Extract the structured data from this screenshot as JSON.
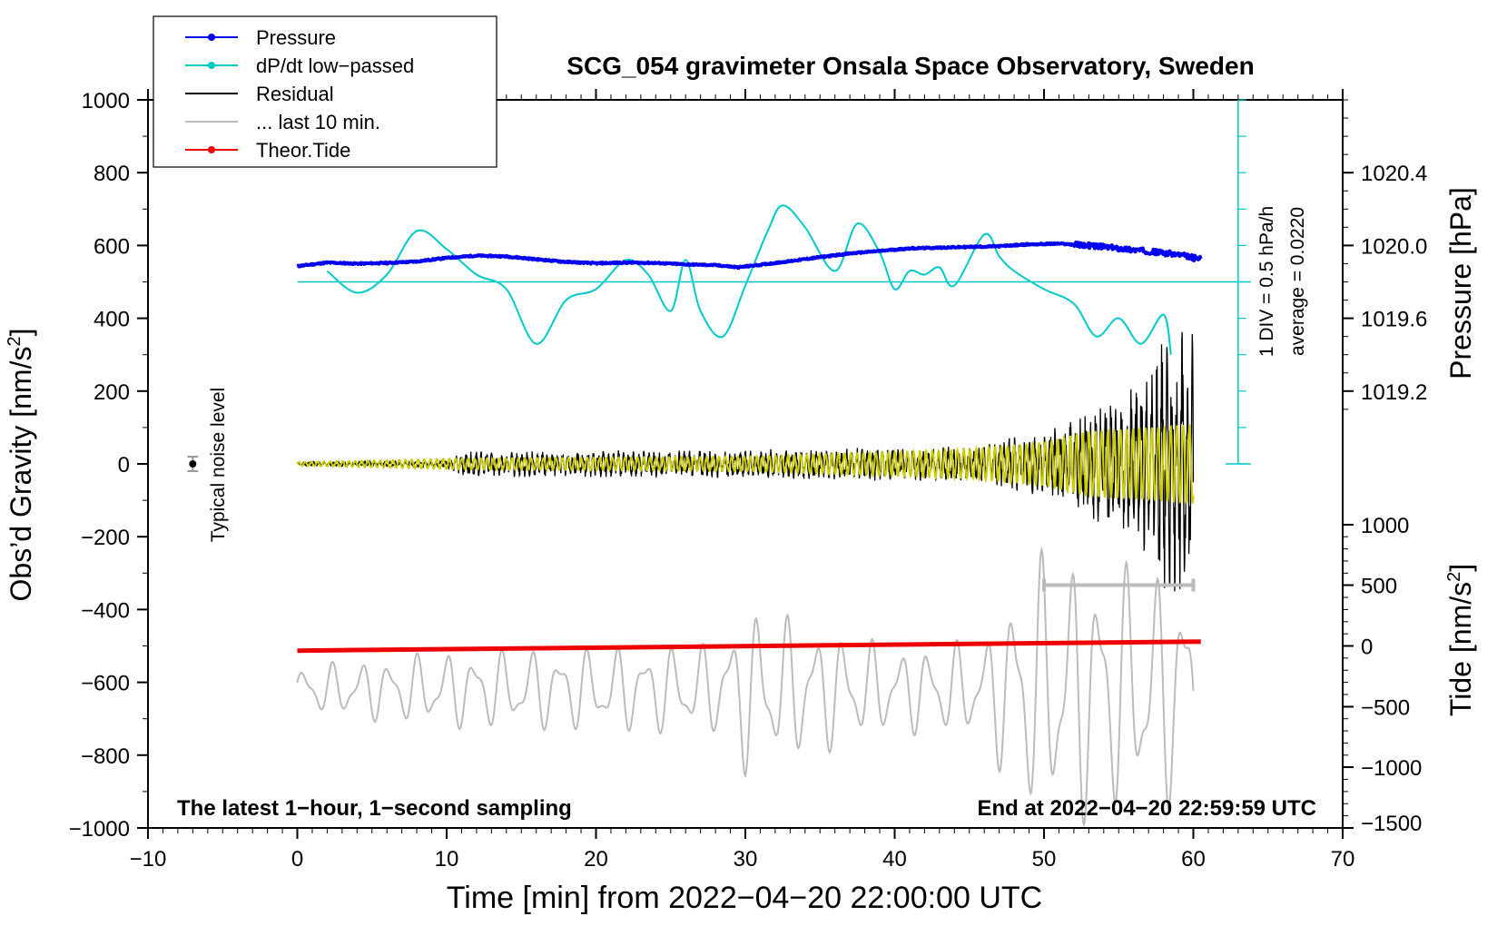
{
  "chart_data": {
    "type": "line",
    "title": "SCG_054 gravimeter Onsala Space Observatory, Sweden",
    "xlabel": "Time [min] from 2022−04−20 22:00:00 UTC",
    "xlim": [
      -10,
      70
    ],
    "x_ticks": [
      -10,
      0,
      10,
      20,
      30,
      40,
      50,
      60,
      70
    ],
    "x_tick_labels": [
      "−10",
      "0",
      "10",
      "20",
      "30",
      "40",
      "50",
      "60",
      "70"
    ],
    "left_axis": {
      "label_main": "Obs’d Gravity [nm/s",
      "label_sup": "2",
      "label_end": "]",
      "ylim": [
        -1000,
        1000
      ],
      "ticks": [
        -1000,
        -800,
        -600,
        -400,
        -200,
        0,
        200,
        400,
        600,
        800,
        1000
      ],
      "tick_labels": [
        "−1000",
        "−800",
        "−600",
        "−400",
        "−200",
        "0",
        "200",
        "400",
        "600",
        "800",
        "1000"
      ]
    },
    "pressure_axis": {
      "label": "Pressure [hPa]",
      "ticks": [
        1019.2,
        1019.6,
        1020.0,
        1020.4
      ],
      "tick_labels": [
        "1019.2",
        "1019.6",
        "1020.0",
        "1020.4"
      ],
      "gravity_equivalent": {
        "1019.2": 200,
        "1019.6": 400,
        "1020.0": 600,
        "1020.4": 800
      }
    },
    "tide_axis": {
      "label_main": "Tide [nm/s",
      "label_sup": "2",
      "label_end": "]",
      "ticks": [
        -1500,
        -1000,
        -500,
        0,
        500,
        1000
      ],
      "tick_labels": [
        "−1500",
        "−1000",
        "−500",
        "0",
        "500",
        "1000"
      ],
      "gravity_equivalent": {
        "-1500": -1000,
        "-1000": -833,
        "-500": -667,
        "0": -500,
        "500": -333,
        "1000": -167
      }
    },
    "legend": [
      {
        "label": "Pressure",
        "color": "#0000ee",
        "style": "line-dot"
      },
      {
        "label": "dP/dt low−passed",
        "color": "#00c8c8",
        "style": "line-dot"
      },
      {
        "label": "Residual",
        "color": "#000000",
        "style": "line"
      },
      {
        "label": "... last 10 min.",
        "color": "#bbbbbb",
        "style": "line"
      },
      {
        "label": "Theor.Tide",
        "color": "#ee0000",
        "style": "line-dot"
      }
    ],
    "series": [
      {
        "name": "Pressure",
        "color": "#0000ee",
        "x": [
          0,
          2,
          4,
          6,
          8,
          10,
          12,
          14,
          16,
          18,
          20,
          22,
          24,
          26,
          28,
          29.5,
          31,
          33,
          35,
          37,
          39,
          41,
          43,
          45,
          47,
          49,
          51,
          53,
          55,
          57,
          59,
          60.5
        ],
        "y": [
          543,
          553,
          550,
          552,
          556,
          566,
          572,
          570,
          562,
          555,
          551,
          553,
          552,
          548,
          546,
          540,
          547,
          557,
          568,
          578,
          585,
          592,
          594,
          596,
          598,
          603,
          605,
          600,
          592,
          584,
          575,
          562
        ]
      },
      {
        "name": "dP/dt low−passed",
        "color": "#00c8c8",
        "x": [
          2,
          4,
          6,
          8,
          10,
          12,
          14,
          16,
          18,
          20,
          22,
          23.5,
          25,
          26,
          27,
          28.5,
          30,
          31.5,
          32.5,
          34,
          36,
          37.5,
          39,
          40,
          41,
          42,
          43,
          44,
          46,
          47,
          48,
          50,
          52,
          53.5,
          55,
          56.5,
          58,
          58.5
        ],
        "y": [
          530,
          470,
          520,
          640,
          590,
          520,
          480,
          330,
          450,
          480,
          560,
          520,
          420,
          560,
          420,
          350,
          490,
          640,
          710,
          650,
          530,
          660,
          580,
          480,
          530,
          520,
          540,
          490,
          630,
          570,
          530,
          480,
          440,
          350,
          400,
          330,
          410,
          300
        ]
      },
      {
        "name": "Residual",
        "color": "#000000",
        "x_range": [
          0,
          60
        ],
        "envelope": [
          [
            0,
            5
          ],
          [
            10,
            10
          ],
          [
            11,
            35
          ],
          [
            30,
            40
          ],
          [
            45,
            50
          ],
          [
            50,
            90
          ],
          [
            53,
            160
          ],
          [
            55,
            200
          ],
          [
            57,
            260
          ],
          [
            58,
            380
          ],
          [
            60,
            370
          ]
        ]
      },
      {
        "name": "Residual filtered",
        "color": "#cccc00",
        "x_range": [
          0,
          60
        ],
        "envelope": [
          [
            0,
            5
          ],
          [
            11,
            15
          ],
          [
            30,
            20
          ],
          [
            45,
            40
          ],
          [
            50,
            60
          ],
          [
            53,
            90
          ],
          [
            57,
            100
          ],
          [
            60,
            110
          ]
        ]
      },
      {
        "name": "... last 10 min.",
        "color": "#bbbbbb",
        "x_range": [
          0,
          60
        ],
        "envelope": [
          [
            0,
            60
          ],
          [
            10,
            100
          ],
          [
            20,
            110
          ],
          [
            28,
            120
          ],
          [
            30,
            220
          ],
          [
            40,
            110
          ],
          [
            46,
            130
          ],
          [
            48,
            280
          ],
          [
            50,
            360
          ],
          [
            60,
            300
          ]
        ]
      },
      {
        "name": "Theor.Tide",
        "color": "#ee0000",
        "x": [
          0,
          60.5
        ],
        "y": [
          -513,
          -488
        ]
      }
    ],
    "noise_level": {
      "x": -7,
      "y": 0,
      "err": 20,
      "label": "Typical noise level"
    },
    "last10_bracket": {
      "x_start": 50,
      "x_end": 60,
      "y": -333
    },
    "dpdt_scale": {
      "div_label": "1 DIV = 0.5 hPa/h",
      "average_label": "average = 0.0220",
      "x": 63,
      "baseline_y": 500,
      "top_y": 1000,
      "bottom_y": 0,
      "divisions": 10
    },
    "notes": {
      "left": "The latest 1−hour, 1−second sampling",
      "right": "End at 2022−04−20 22:59:59 UTC"
    }
  }
}
